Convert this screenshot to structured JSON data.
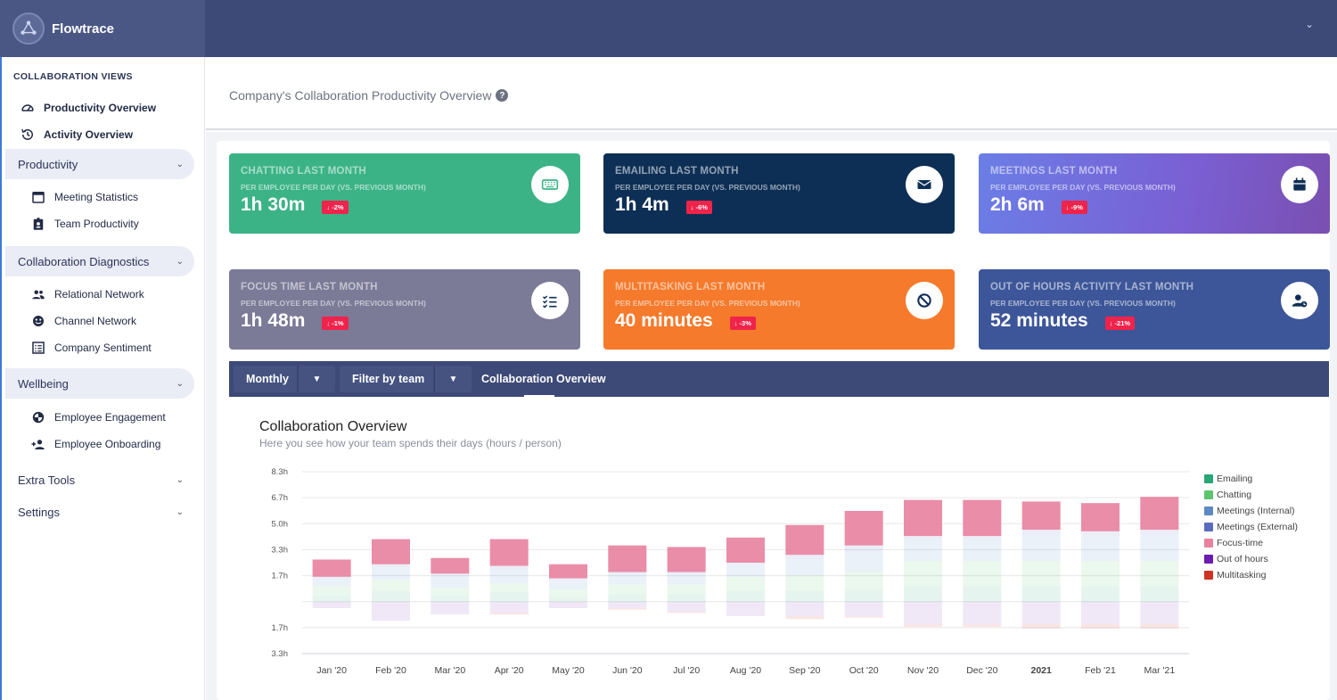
{
  "app": {
    "name": "Flowtrace"
  },
  "sidebar": {
    "header": "COLLABORATION VIEWS",
    "top_links": [
      {
        "label": "Productivity Overview",
        "icon": "speedometer-icon"
      },
      {
        "label": "Activity Overview",
        "icon": "history-icon"
      }
    ],
    "groups": [
      {
        "label": "Productivity",
        "items": [
          {
            "label": "Meeting Statistics",
            "icon": "calendar-icon"
          },
          {
            "label": "Team Productivity",
            "icon": "badge-icon"
          }
        ]
      },
      {
        "label": "Collaboration Diagnostics",
        "items": [
          {
            "label": "Relational Network",
            "icon": "people-icon"
          },
          {
            "label": "Channel Network",
            "icon": "globe-icon"
          },
          {
            "label": "Company Sentiment",
            "icon": "list-icon"
          }
        ]
      },
      {
        "label": "Wellbeing",
        "items": [
          {
            "label": "Employee Engagement",
            "icon": "pie-icon"
          },
          {
            "label": "Employee Onboarding",
            "icon": "add-person-icon"
          }
        ]
      },
      {
        "label": "Extra Tools",
        "items": []
      },
      {
        "label": "Settings",
        "items": []
      }
    ]
  },
  "page": {
    "title": "Company's Collaboration Productivity Overview",
    "help": "?"
  },
  "cards": [
    {
      "title": "CHATTING LAST MONTH",
      "sub": "PER EMPLOYEE PER DAY (VS. PREVIOUS MONTH)",
      "value": "1h 30m",
      "delta": "↓ -2%",
      "icon": "keyboard-icon",
      "color": "#3cb387"
    },
    {
      "title": "EMAILING LAST MONTH",
      "sub": "PER EMPLOYEE PER DAY (VS. PREVIOUS MONTH)",
      "value": "1h 4m",
      "delta": "↓ -6%",
      "icon": "envelope-icon",
      "color": "#0e2f55"
    },
    {
      "title": "MEETINGS LAST MONTH",
      "sub": "PER EMPLOYEE PER DAY (VS. PREVIOUS MONTH)",
      "value": "2h 6m",
      "delta": "↓ -9%",
      "icon": "calendar-icon",
      "color": "#7a5fd3"
    },
    {
      "title": "FOCUS TIME LAST MONTH",
      "sub": "PER EMPLOYEE PER DAY (VS. PREVIOUS MONTH)",
      "value": "1h 48m",
      "delta": "↓ -1%",
      "icon": "checklist-icon",
      "color": "#7b7a97"
    },
    {
      "title": "MULTITASKING LAST MONTH",
      "sub": "PER EMPLOYEE PER DAY (VS. PREVIOUS MONTH)",
      "value": "40 minutes",
      "delta": "↓ -3%",
      "icon": "block-icon",
      "color": "#f57a2c"
    },
    {
      "title": "OUT OF HOURS ACTIVITY LAST MONTH",
      "sub": "PER EMPLOYEE PER DAY (VS. PREVIOUS MONTH)",
      "value": "52 minutes",
      "delta": "↓ -21%",
      "icon": "user-clock-icon",
      "color": "#3d5699"
    }
  ],
  "toolbar": {
    "period": "Monthly",
    "team_filter": "Filter by team",
    "active_tab": "Collaboration Overview"
  },
  "chart": {
    "title": "Collaboration Overview",
    "subtitle": "Here you see how your team spends their days (hours / person)"
  },
  "chart_data": {
    "type": "bar",
    "stacked": true,
    "categories": [
      "Jan '20",
      "Feb '20",
      "Mar '20",
      "Apr '20",
      "May '20",
      "Jun '20",
      "Jul '20",
      "Aug '20",
      "Sep '20",
      "Oct '20",
      "Nov '20",
      "Dec '20",
      "2021",
      "Feb '21",
      "Mar '21"
    ],
    "y_ticks": [
      "8.3h",
      "6.7h",
      "5.0h",
      "3.3h",
      "1.7h",
      "",
      "1.7h",
      "3.3h"
    ],
    "ylim": [
      -3.3,
      8.3
    ],
    "series": [
      {
        "name": "Emailing",
        "color": "#27a776",
        "values": [
          0.4,
          0.7,
          0.4,
          0.6,
          0.3,
          0.5,
          0.5,
          0.7,
          0.7,
          0.8,
          1.0,
          1.0,
          1.0,
          1.0,
          1.0
        ]
      },
      {
        "name": "Chatting",
        "color": "#5ec46e",
        "values": [
          0.6,
          0.7,
          0.5,
          0.6,
          0.5,
          0.6,
          0.6,
          0.9,
          1.0,
          1.1,
          1.6,
          1.6,
          1.6,
          1.6,
          1.6
        ]
      },
      {
        "name": "Meetings (Internal)",
        "color": "#5b89c4",
        "values": [
          0.5,
          0.9,
          0.8,
          0.9,
          0.6,
          0.7,
          0.7,
          0.8,
          1.0,
          1.3,
          1.4,
          1.4,
          1.7,
          1.6,
          1.7
        ]
      },
      {
        "name": "Meetings (External)",
        "color": "#5c6cbd",
        "values": [
          0.1,
          0.1,
          0.1,
          0.2,
          0.1,
          0.1,
          0.1,
          0.1,
          0.3,
          0.4,
          0.2,
          0.2,
          0.3,
          0.3,
          0.3
        ]
      },
      {
        "name": "Focus-time",
        "color": "#e8819e",
        "values": [
          1.1,
          1.6,
          1.0,
          1.7,
          0.9,
          1.7,
          1.6,
          1.6,
          1.9,
          2.2,
          2.3,
          2.3,
          1.8,
          1.8,
          2.1
        ]
      },
      {
        "name": "Out of hours",
        "color": "#6a1bb0",
        "values": [
          -0.4,
          -1.2,
          -0.8,
          -0.7,
          -0.4,
          -0.4,
          -0.6,
          -0.9,
          -0.9,
          -0.9,
          -1.4,
          -1.4,
          -1.4,
          -1.4,
          -1.4
        ]
      },
      {
        "name": "Multitasking",
        "color": "#cf3324",
        "values": [
          0.0,
          0.0,
          0.0,
          -0.1,
          0.0,
          -0.1,
          -0.1,
          0.0,
          -0.2,
          -0.1,
          -0.2,
          -0.2,
          -0.3,
          -0.3,
          -0.3
        ]
      }
    ],
    "legend_position": "right",
    "grid": true
  }
}
